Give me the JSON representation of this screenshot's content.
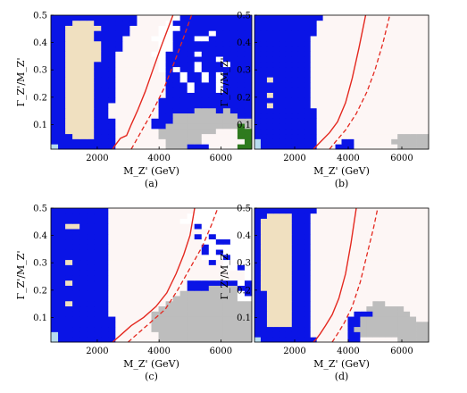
{
  "figure": {
    "xlabel": "M_Z' (GeV)",
    "ylabel": "Γ_Z'/M_Z'",
    "colors": {
      "blue": "#0a14e6",
      "tan": "#f0e0c0",
      "grey": "#bdbdbd",
      "green": "#2f7a1e",
      "lightblue": "#b7dcef",
      "background": "#fdf6f5",
      "contour": "#e4281f",
      "white": "#ffffff"
    }
  },
  "chart_data": [
    {
      "type": "heatmap",
      "caption": "(a)",
      "xlim": [
        500,
        7000
      ],
      "ylim": [
        0.01,
        0.5
      ],
      "xticks": [
        2000,
        4000,
        6000
      ],
      "yticks": [
        0.1,
        0.2,
        0.3,
        0.4,
        0.5
      ],
      "grid_cols": 28,
      "grid_rows": 26,
      "legend": "none",
      "cells": [
        "LBBBBBBBBOOOOOOOGGGBBBOOOOPP",
        "BBBBBBBBBOOOOOOOGGGGGOOOOOOP",
        "BBBTTTBBBOOOOOOGGGGGGOOOOOPP",
        "BBTTTTBBBOOOOOOGGGGGGGGOOOPP",
        "BBTTTTBBBOOOOOBBGGGGGGGGGGPG",
        "BBTTTTBBBOOOOOBBBGGGGGGGGGGG",
        "BBTTTTBBOOOOOOOBBGGGGGGGGGBB",
        "BBTTTTBBOOOOOOOBBBBBGGGBGBBB",
        "BBTTTTBBOOOOOOOBBBBBBBBBBBBB",
        "BBTTTTBBBOOOOOOBBBBBBBBBBBBB",
        "BBTTTTBBBOOOOOOOBBBBBBBBBBBB",
        "BBTTTTBBBOOOOOOOBBBWBBBWBBBB",
        "BBTTTTBBBOOOOOOOBBBWBBBWBBBB",
        "BBTTTTBBBOOOOOOOBBWBBWBWBBBB",
        "BBTTTTBBBOOOOOOOBBWBBWBWBBBB",
        "BBTTTTBBBOOOOOOWBWBBWBBBBBBB",
        "BBTTTTBBBOOOOOOWBBBBWBBBWBBB",
        "BBTTTTTBBOOOOOOWBBBBBBBWBBBB",
        "BBTTTTTBBOOOOOWWBBBBWBBBBBBB",
        "BBTTTTTBBBOOOOOWWBBBBBBBBBBB",
        "BBTTTTTBBBOOOOOWWBBBBBBBBBBB",
        "BBTTTTBBBBOOOOWWWBBBWWBBBBBB",
        "BBTTTTBBBBBOOOOWWBBBBBWBBBBB",
        "BBTTTTTBBBBOOOOWWWBBBBBBBBBB",
        "BBBTTTBBBBBBOOOOWBBBBBBBBBBB",
        "BBBBBBBBBBBBOOOOOWBBBBBBBBBB"
      ],
      "contour_solid": [
        [
          2500,
          0.01
        ],
        [
          2550,
          0.02
        ],
        [
          2750,
          0.05
        ],
        [
          2950,
          0.06
        ],
        [
          3100,
          0.1
        ],
        [
          3300,
          0.15
        ],
        [
          3550,
          0.22
        ],
        [
          3800,
          0.3
        ],
        [
          4050,
          0.38
        ],
        [
          4250,
          0.44
        ],
        [
          4450,
          0.5
        ]
      ],
      "contour_dashed": [
        [
          3100,
          0.01
        ],
        [
          3300,
          0.05
        ],
        [
          3500,
          0.09
        ],
        [
          3800,
          0.15
        ],
        [
          4150,
          0.23
        ],
        [
          4500,
          0.33
        ],
        [
          4800,
          0.42
        ],
        [
          5050,
          0.5
        ]
      ]
    },
    {
      "type": "heatmap",
      "caption": "(b)",
      "xlim": [
        500,
        7000
      ],
      "ylim": [
        0.01,
        0.5
      ],
      "xticks": [
        2000,
        4000,
        6000
      ],
      "yticks": [
        0.1,
        0.2,
        0.3,
        0.4,
        0.5
      ],
      "grid_cols": 28,
      "grid_rows": 26,
      "legend": "none",
      "cells": [
        "LBBBBBBBBBOOOBBBOOOOOOOGGGGG",
        "LBBBBBBBBBOOOOBBOOOOOOGGGGGG",
        "BBBBBBBBBBOOOOOOOOOOOOOGGGGG",
        "BBBBBBBBBBOOOOOOOOOOOOOOOOOO",
        "BBBBBBBBBBOOOOOOOOOOOOOOOOOO",
        "BBBBBBBBBBOOOOOOOOOOOOOOOOOO",
        "BBBBBBBBBBOOOOOOOOOOOOOOOOOO",
        "BBBBBBBBBBOOOOOOOOOOOOOOOOOO",
        "BBTBBBBBBOOOOOOOOOOOOOOOOOOO",
        "BBBBBBBBBOOOOOOOOOOOOOOOOOOO",
        "BBTBBBBBBOOOOOOOOOOOOOOOOOOO",
        "BBBBBBBBBOOOOOOOOOOOOOOOOOOO",
        "BBBBBBBBBOOOOOOOOOOOOOOOOOOO",
        "BBTBBBBBBOOOOOOOOOOOOOOOOOOO",
        "BBBBBBBBBOOOOOOOOOOOOOOOOOOO",
        "BBBBBBBBBOOOOOOOOOOOOOOOOOOO",
        "BBBBBBBBBOOOOOOOOOOOOOOOOOOO",
        "BBBBBBBBBOOOOOOOOOOOOOOOOOOO",
        "BBBBBBBBBOOOOOOOOOOOOOOOOOOO",
        "BBBBBBBBBOOOOOOOOOOOOOOOOOOO",
        "BBBBBBBBBOOOOOOOOOOOOOOOOOOO",
        "BBBBBBBBBOOOOOOOOOOOOOOOOOOO",
        "BBBBBBBBBBOOOOOOOOOOOOOOOOOO",
        "BBBBBBBBBBOOOOOOOOOOOOOOOOOO",
        "BBBBBBBBBBOOOOOOOOOOOOOOOOOO",
        "BBBBBBBBBBBOOOOOOOOOOOOOOOOO"
      ],
      "contour_solid": [
        [
          2700,
          0.01
        ],
        [
          2800,
          0.02
        ],
        [
          3000,
          0.04
        ],
        [
          3300,
          0.07
        ],
        [
          3600,
          0.11
        ],
        [
          3900,
          0.18
        ],
        [
          4150,
          0.27
        ],
        [
          4400,
          0.38
        ],
        [
          4650,
          0.5
        ]
      ],
      "contour_dashed": [
        [
          3300,
          0.01
        ],
        [
          3550,
          0.04
        ],
        [
          3900,
          0.08
        ],
        [
          4300,
          0.14
        ],
        [
          4700,
          0.22
        ],
        [
          5000,
          0.3
        ],
        [
          5300,
          0.4
        ],
        [
          5550,
          0.5
        ]
      ]
    },
    {
      "type": "heatmap",
      "caption": "(c)",
      "xlim": [
        500,
        7000
      ],
      "ylim": [
        0.01,
        0.5
      ],
      "xticks": [
        2000,
        4000,
        6000
      ],
      "yticks": [
        0.1,
        0.2,
        0.3,
        0.4,
        0.5
      ],
      "grid_cols": 28,
      "grid_rows": 26,
      "legend": "none",
      "cells": [
        "LBBBBBBBBOOOOOOGGGGGGGGGGGGG",
        "LBBBBBBBBOOOOOOGGGGGGGGGGGGG",
        "BBBBBBBBBOOOOOGGGGGGGGGGGGGG",
        "BBBBBBBBBOOOOOGGGGGGGGGGGGGG",
        "BBBBBBBBBOOOOOGGGGGGGGGGGGGG",
        "BBBBBBBBOOOOOOGGGGGGGGGGGGGG",
        "BBBBBBBBOOOOOOOGGGGGGGGGGGGG",
        "BBTBBBBBOOOOOOOOGGGGGGGGGGGG",
        "BBBBBBBBOOOOOOOOOGGGGGGGGGWW",
        "BBBBBBBBOOOOOOOOOOGGGGGGGGWB",
        "BBBBBBBBOOOOOOOOOOOBBBGGGGBB",
        "BBTBBBBBOOOOOOOOOOOBBBBBBBWB",
        "BBBBBBBBOOOOOOOOOOOOOOOOOOOW",
        "BBBBBBBBOOOOOOOOOOOOOOOOOOOW",
        "BBBBBBBBOOOOOOOOOOOOOOOOWWBW",
        "BBTBBBBBOOOOOOOOOOOOOOBOWWWW",
        "BBBBBBBBOOOOOOOOOOOOOWWWBWWW",
        "BBBBBBBBOOOOOOOOOOOOOBWBWWWW",
        "BBBBBBBBOOOOOOOOOOOOOBWWWWWW",
        "BBBBBBBBOOOOOOOOOOOOOWWBBWWW",
        "BBBBBBBBOOOOOOOOOOOOBWBWWWWW",
        "BBBBBBBBOOOOOOOOOOOOOOWWWWWW",
        "BBTTBBBBOOOOOOOOOOOOBWWWWWWW",
        "BBBBBBBBOOOOOOOOOOWWWWWWWWWW",
        "BBBBBBBBOOOOOOOOOOOWWWWWWWWW",
        "BBBBBBBBOOOOOOOOOOOOWWWWWWWW"
      ],
      "contour_solid": [
        [
          2500,
          0.01
        ],
        [
          2600,
          0.02
        ],
        [
          2800,
          0.04
        ],
        [
          3100,
          0.07
        ],
        [
          3500,
          0.1
        ],
        [
          3900,
          0.14
        ],
        [
          4250,
          0.19
        ],
        [
          4550,
          0.26
        ],
        [
          4800,
          0.33
        ],
        [
          5000,
          0.4
        ],
        [
          5150,
          0.5
        ]
      ],
      "contour_dashed": [
        [
          3000,
          0.01
        ],
        [
          3300,
          0.04
        ],
        [
          3700,
          0.08
        ],
        [
          4200,
          0.13
        ],
        [
          4600,
          0.2
        ],
        [
          5000,
          0.28
        ],
        [
          5400,
          0.36
        ],
        [
          5700,
          0.44
        ],
        [
          5900,
          0.5
        ]
      ]
    },
    {
      "type": "heatmap",
      "caption": "(d)",
      "xlim": [
        500,
        7000
      ],
      "ylim": [
        0.01,
        0.5
      ],
      "xticks": [
        2000,
        4000,
        6000
      ],
      "yticks": [
        0.1,
        0.2,
        0.3,
        0.4,
        0.5
      ],
      "grid_cols": 28,
      "grid_rows": 26,
      "legend": "none",
      "cells": [
        "LBBBBBBBBBOOOOOBBOOOOOOGGGGG",
        "BBBBBBBBBOOOOOOBBGGGGGGGGGGG",
        "BBBBBBBBBOOOOOOBGGGGGGGGGGGG",
        "BBTTTTBBBOOOOOOBBGGGGGGGGGGG",
        "BBTTTTBBBOOOOOOBBGGGGGGGGGOO",
        "BBTTTTBBBOOOOOOOBBBGGGGGGOOO",
        "BBTTTTBBBOOOOOOOOOGGGGGGOOOO",
        "BBTTTTBBBOOOOOOOOOOGGOOOOOOO",
        "BBTTTTBBBOOOOOOOOOOOOOOOOOOO",
        "BBTTTTBBBOOOOOOOOOOOOOOOOOOO",
        "BTTTTTBBBOOOOOOOOOOOOOOOOOOO",
        "BTTTTTBBBOOOOOOOOOOOOOOOOOOO",
        "BTTTTTBBBOOOOOOOOOOOOOOOOOOO",
        "BTTTTTBBBOOOOOOOOOOOOOOOOOOO",
        "BTTTTTBBBOOOOOOOOOOOOOOOOOOO",
        "BTTTTTBBBOOOOOOOOOOOOOOOOOOO",
        "BTTTTTBBBOOOOOOOOOOOOOOOOOOO",
        "BTTTTTBBBOOOOOOOOOOOOOOOOOOO",
        "BTTTTTBBBOOOOOOOOOOOOOOOOOOO",
        "BTTTTTBBBOOOOOOOOOOOOOOOOOOO",
        "BTTTTTBBBOOOOOOOOOOOOOOOOOOO",
        "BTTTTTBBBOOOOOOOOOOOOOOOOOOO",
        "BTTTTTBBBOOOOOOOOOOOOOOOOOOO",
        "BTTTTTBBBOOOOOOOOOOOOOOOOOOO",
        "BBTTTTBBBOOOOOOOOOOOOOOOOOOO",
        "BBBBBBBBBBOOOOOOOOOOOOOOOOOO"
      ],
      "contour_solid": [
        [
          2700,
          0.01
        ],
        [
          2800,
          0.02
        ],
        [
          2950,
          0.04
        ],
        [
          3150,
          0.07
        ],
        [
          3400,
          0.11
        ],
        [
          3650,
          0.17
        ],
        [
          3900,
          0.26
        ],
        [
          4100,
          0.37
        ],
        [
          4300,
          0.5
        ]
      ],
      "contour_dashed": [
        [
          3400,
          0.01
        ],
        [
          3600,
          0.04
        ],
        [
          3850,
          0.08
        ],
        [
          4150,
          0.14
        ],
        [
          4450,
          0.23
        ],
        [
          4700,
          0.33
        ],
        [
          4950,
          0.43
        ],
        [
          5100,
          0.5
        ]
      ]
    }
  ]
}
